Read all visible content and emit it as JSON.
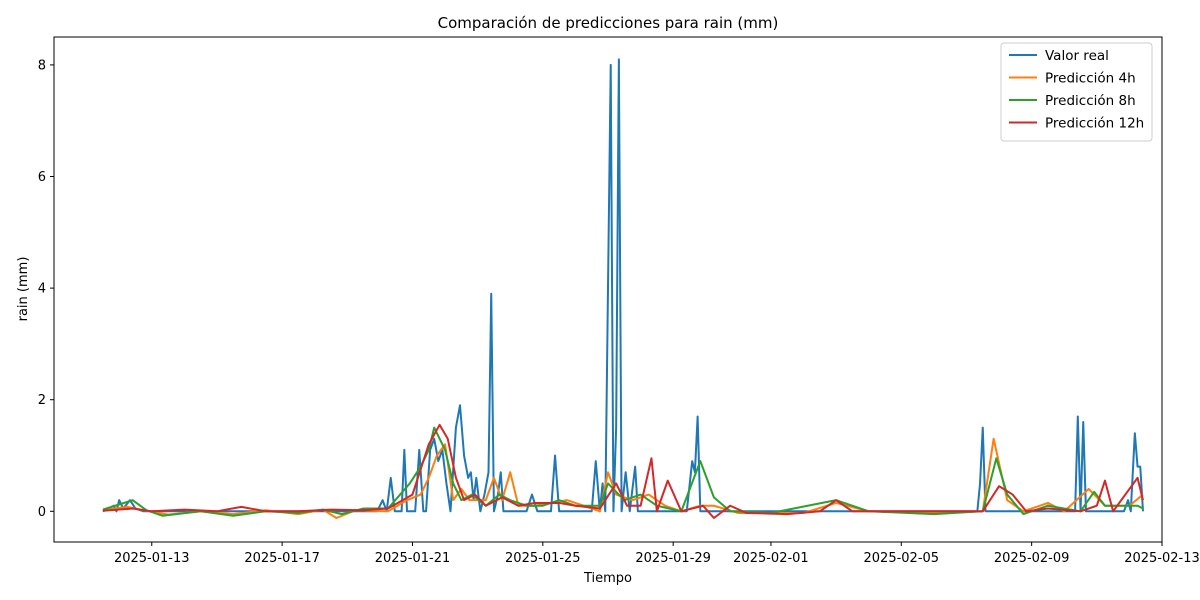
{
  "chart_data": {
    "type": "line",
    "title": "Comparación de predicciones para rain (mm)",
    "xlabel": "Tiempo",
    "ylabel": "rain (mm)",
    "x_axis": {
      "type": "date",
      "range": [
        "2025-01-10T00:00",
        "2025-02-13T00:00"
      ],
      "ticks": [
        "2025-01-13",
        "2025-01-17",
        "2025-01-21",
        "2025-01-25",
        "2025-01-29",
        "2025-02-01",
        "2025-02-05",
        "2025-02-09",
        "2025-02-13"
      ]
    },
    "y_axis": {
      "range": [
        -0.55,
        8.5
      ],
      "ticks": [
        0,
        2,
        4,
        6,
        8
      ]
    },
    "grid": false,
    "legend": {
      "position": "upper-right"
    },
    "series": [
      {
        "name": "Valor real",
        "color": "#1f77b4",
        "points": [
          [
            "2025-01-11T12:00",
            0.0
          ],
          [
            "2025-01-11T20:00",
            0.1
          ],
          [
            "2025-01-11T22:00",
            0.0
          ],
          [
            "2025-01-12T00:00",
            0.2
          ],
          [
            "2025-01-12T03:00",
            0.05
          ],
          [
            "2025-01-12T08:00",
            0.2
          ],
          [
            "2025-01-12T12:00",
            0.05
          ],
          [
            "2025-01-12T18:00",
            0.0
          ],
          [
            "2025-01-17T00:00",
            0.0
          ],
          [
            "2025-01-19T22:00",
            0.0
          ],
          [
            "2025-01-20T02:00",
            0.2
          ],
          [
            "2025-01-20T05:00",
            0.0
          ],
          [
            "2025-01-20T08:00",
            0.6
          ],
          [
            "2025-01-20T11:00",
            0.0
          ],
          [
            "2025-01-20T16:00",
            0.0
          ],
          [
            "2025-01-20T18:00",
            1.1
          ],
          [
            "2025-01-20T20:00",
            0.0
          ],
          [
            "2025-01-21T02:00",
            0.0
          ],
          [
            "2025-01-21T05:00",
            1.1
          ],
          [
            "2025-01-21T08:00",
            0.0
          ],
          [
            "2025-01-21T10:00",
            0.0
          ],
          [
            "2025-01-21T13:00",
            1.1
          ],
          [
            "2025-01-21T16:00",
            1.3
          ],
          [
            "2025-01-21T19:00",
            0.9
          ],
          [
            "2025-01-21T22:00",
            1.1
          ],
          [
            "2025-01-22T01:00",
            0.5
          ],
          [
            "2025-01-22T04:00",
            0.0
          ],
          [
            "2025-01-22T08:00",
            1.5
          ],
          [
            "2025-01-22T11:00",
            1.9
          ],
          [
            "2025-01-22T14:00",
            1.0
          ],
          [
            "2025-01-22T17:00",
            0.6
          ],
          [
            "2025-01-22T19:00",
            0.7
          ],
          [
            "2025-01-22T21:00",
            0.2
          ],
          [
            "2025-01-22T23:00",
            0.6
          ],
          [
            "2025-01-23T02:00",
            0.0
          ],
          [
            "2025-01-23T05:00",
            0.3
          ],
          [
            "2025-01-23T08:00",
            0.7
          ],
          [
            "2025-01-23T10:00",
            3.9
          ],
          [
            "2025-01-23T12:00",
            0.0
          ],
          [
            "2025-01-23T15:00",
            0.3
          ],
          [
            "2025-01-23T17:00",
            0.7
          ],
          [
            "2025-01-23T19:00",
            0.0
          ],
          [
            "2025-01-24T00:00",
            0.0
          ],
          [
            "2025-01-24T12:00",
            0.0
          ],
          [
            "2025-01-24T16:00",
            0.3
          ],
          [
            "2025-01-24T20:00",
            0.0
          ],
          [
            "2025-01-25T06:00",
            0.0
          ],
          [
            "2025-01-25T09:00",
            1.0
          ],
          [
            "2025-01-25T12:00",
            0.0
          ],
          [
            "2025-01-26T00:00",
            0.0
          ],
          [
            "2025-01-26T08:00",
            0.0
          ],
          [
            "2025-01-26T12:00",
            0.0
          ],
          [
            "2025-01-26T15:00",
            0.9
          ],
          [
            "2025-01-26T18:00",
            0.0
          ],
          [
            "2025-01-26T20:00",
            0.5
          ],
          [
            "2025-01-26T22:00",
            0.0
          ],
          [
            "2025-01-27T02:00",
            8.0
          ],
          [
            "2025-01-27T04:00",
            0.0
          ],
          [
            "2025-01-27T06:00",
            1.5
          ],
          [
            "2025-01-27T08:00",
            8.1
          ],
          [
            "2025-01-27T10:00",
            0.0
          ],
          [
            "2025-01-27T13:00",
            0.7
          ],
          [
            "2025-01-27T16:00",
            0.0
          ],
          [
            "2025-01-27T20:00",
            0.8
          ],
          [
            "2025-01-27T22:00",
            0.0
          ],
          [
            "2025-01-28T08:00",
            0.0
          ],
          [
            "2025-01-29T10:00",
            0.0
          ],
          [
            "2025-01-29T14:00",
            0.9
          ],
          [
            "2025-01-29T16:00",
            0.7
          ],
          [
            "2025-01-29T18:00",
            1.7
          ],
          [
            "2025-01-29T20:00",
            0.0
          ],
          [
            "2025-01-30T12:00",
            0.0
          ],
          [
            "2025-02-07T08:00",
            0.0
          ],
          [
            "2025-02-07T10:00",
            0.5
          ],
          [
            "2025-02-07T12:00",
            1.5
          ],
          [
            "2025-02-07T14:00",
            0.0
          ],
          [
            "2025-02-10T08:00",
            0.0
          ],
          [
            "2025-02-10T10:00",
            1.7
          ],
          [
            "2025-02-10T12:00",
            0.0
          ],
          [
            "2025-02-10T14:00",
            1.6
          ],
          [
            "2025-02-10T16:00",
            0.0
          ],
          [
            "2025-02-11T20:00",
            0.0
          ],
          [
            "2025-02-11T23:00",
            0.2
          ],
          [
            "2025-02-12T01:00",
            0.0
          ],
          [
            "2025-02-12T04:00",
            1.4
          ],
          [
            "2025-02-12T06:00",
            0.8
          ],
          [
            "2025-02-12T08:00",
            0.8
          ],
          [
            "2025-02-12T10:00",
            0.0
          ]
        ]
      },
      {
        "name": "Predicción 4h",
        "color": "#ff7f0e",
        "points": [
          [
            "2025-01-11T12:00",
            0.02
          ],
          [
            "2025-01-12T06:00",
            0.08
          ],
          [
            "2025-01-12T18:00",
            0.02
          ],
          [
            "2025-01-13T12:00",
            -0.06
          ],
          [
            "2025-01-14T12:00",
            0.0
          ],
          [
            "2025-01-15T12:00",
            -0.05
          ],
          [
            "2025-01-16T12:00",
            0.02
          ],
          [
            "2025-01-17T12:00",
            -0.05
          ],
          [
            "2025-01-18T06:00",
            0.03
          ],
          [
            "2025-01-18T16:00",
            -0.12
          ],
          [
            "2025-01-19T06:00",
            0.02
          ],
          [
            "2025-01-20T06:00",
            0.0
          ],
          [
            "2025-01-20T20:00",
            0.2
          ],
          [
            "2025-01-21T06:00",
            0.3
          ],
          [
            "2025-01-21T12:00",
            0.6
          ],
          [
            "2025-01-21T18:00",
            1.0
          ],
          [
            "2025-01-22T00:00",
            1.2
          ],
          [
            "2025-01-22T06:00",
            0.2
          ],
          [
            "2025-01-22T12:00",
            0.4
          ],
          [
            "2025-01-22T18:00",
            0.2
          ],
          [
            "2025-01-23T06:00",
            0.2
          ],
          [
            "2025-01-23T12:00",
            0.6
          ],
          [
            "2025-01-23T18:00",
            0.2
          ],
          [
            "2025-01-24T00:00",
            0.7
          ],
          [
            "2025-01-24T06:00",
            0.1
          ],
          [
            "2025-01-24T18:00",
            0.1
          ],
          [
            "2025-01-25T06:00",
            0.15
          ],
          [
            "2025-01-25T18:00",
            0.2
          ],
          [
            "2025-01-26T06:00",
            0.1
          ],
          [
            "2025-01-26T18:00",
            0.0
          ],
          [
            "2025-01-27T00:00",
            0.7
          ],
          [
            "2025-01-27T06:00",
            0.3
          ],
          [
            "2025-01-27T18:00",
            0.2
          ],
          [
            "2025-01-28T06:00",
            0.3
          ],
          [
            "2025-01-28T18:00",
            0.1
          ],
          [
            "2025-01-29T06:00",
            0.0
          ],
          [
            "2025-01-29T20:00",
            0.1
          ],
          [
            "2025-01-30T06:00",
            0.1
          ],
          [
            "2025-01-31T00:00",
            -0.03
          ],
          [
            "2025-02-02T00:00",
            -0.03
          ],
          [
            "2025-02-03T00:00",
            0.15
          ],
          [
            "2025-02-04T00:00",
            0.0
          ],
          [
            "2025-02-06T00:00",
            -0.03
          ],
          [
            "2025-02-07T12:00",
            0.0
          ],
          [
            "2025-02-07T20:00",
            1.3
          ],
          [
            "2025-02-08T06:00",
            0.2
          ],
          [
            "2025-02-08T18:00",
            0.0
          ],
          [
            "2025-02-09T12:00",
            0.15
          ],
          [
            "2025-02-10T00:00",
            0.0
          ],
          [
            "2025-02-10T18:00",
            0.4
          ],
          [
            "2025-02-11T06:00",
            0.1
          ],
          [
            "2025-02-12T00:00",
            0.1
          ],
          [
            "2025-02-12T10:00",
            0.3
          ]
        ]
      },
      {
        "name": "Predicción 8h",
        "color": "#2ca02c",
        "points": [
          [
            "2025-01-11T12:00",
            0.03
          ],
          [
            "2025-01-12T10:00",
            0.2
          ],
          [
            "2025-01-12T20:00",
            0.02
          ],
          [
            "2025-01-13T08:00",
            -0.08
          ],
          [
            "2025-01-14T12:00",
            0.0
          ],
          [
            "2025-01-15T12:00",
            -0.08
          ],
          [
            "2025-01-16T12:00",
            0.0
          ],
          [
            "2025-01-17T12:00",
            -0.03
          ],
          [
            "2025-01-18T06:00",
            0.03
          ],
          [
            "2025-01-18T20:00",
            -0.05
          ],
          [
            "2025-01-19T12:00",
            0.05
          ],
          [
            "2025-01-20T06:00",
            0.05
          ],
          [
            "2025-01-20T22:00",
            0.5
          ],
          [
            "2025-01-21T06:00",
            0.8
          ],
          [
            "2025-01-21T12:00",
            1.1
          ],
          [
            "2025-01-21T16:00",
            1.5
          ],
          [
            "2025-01-22T00:00",
            1.1
          ],
          [
            "2025-01-22T06:00",
            0.5
          ],
          [
            "2025-01-22T12:00",
            0.2
          ],
          [
            "2025-01-22T20:00",
            0.3
          ],
          [
            "2025-01-23T06:00",
            0.1
          ],
          [
            "2025-01-23T16:00",
            0.3
          ],
          [
            "2025-01-24T00:00",
            0.2
          ],
          [
            "2025-01-24T12:00",
            0.1
          ],
          [
            "2025-01-25T00:00",
            0.1
          ],
          [
            "2025-01-25T12:00",
            0.2
          ],
          [
            "2025-01-26T00:00",
            0.1
          ],
          [
            "2025-01-26T18:00",
            0.1
          ],
          [
            "2025-01-27T00:00",
            0.5
          ],
          [
            "2025-01-27T12:00",
            0.2
          ],
          [
            "2025-01-28T00:00",
            0.3
          ],
          [
            "2025-01-28T12:00",
            0.1
          ],
          [
            "2025-01-29T06:00",
            0.0
          ],
          [
            "2025-01-29T20:00",
            0.9
          ],
          [
            "2025-01-30T06:00",
            0.25
          ],
          [
            "2025-01-30T18:00",
            0.0
          ],
          [
            "2025-02-01T00:00",
            -0.03
          ],
          [
            "2025-02-03T00:00",
            0.2
          ],
          [
            "2025-02-04T00:00",
            0.0
          ],
          [
            "2025-02-06T00:00",
            -0.05
          ],
          [
            "2025-02-07T12:00",
            0.0
          ],
          [
            "2025-02-07T22:00",
            0.95
          ],
          [
            "2025-02-08T06:00",
            0.3
          ],
          [
            "2025-02-08T18:00",
            -0.05
          ],
          [
            "2025-02-09T12:00",
            0.1
          ],
          [
            "2025-02-10T12:00",
            0.0
          ],
          [
            "2025-02-10T22:00",
            0.35
          ],
          [
            "2025-02-11T06:00",
            0.1
          ],
          [
            "2025-02-12T06:00",
            0.1
          ],
          [
            "2025-02-12T10:00",
            0.05
          ]
        ]
      },
      {
        "name": "Predicción 12h",
        "color": "#d62728",
        "points": [
          [
            "2025-01-11T12:00",
            0.01
          ],
          [
            "2025-01-12T10:00",
            0.05
          ],
          [
            "2025-01-13T00:00",
            0.0
          ],
          [
            "2025-01-14T00:00",
            0.03
          ],
          [
            "2025-01-15T00:00",
            0.0
          ],
          [
            "2025-01-15T18:00",
            0.08
          ],
          [
            "2025-01-16T12:00",
            0.0
          ],
          [
            "2025-01-17T12:00",
            0.0
          ],
          [
            "2025-01-18T12:00",
            0.03
          ],
          [
            "2025-01-19T12:00",
            0.02
          ],
          [
            "2025-01-20T06:00",
            0.05
          ],
          [
            "2025-01-21T00:00",
            0.3
          ],
          [
            "2025-01-21T12:00",
            1.2
          ],
          [
            "2025-01-21T20:00",
            1.55
          ],
          [
            "2025-01-22T02:00",
            1.3
          ],
          [
            "2025-01-22T08:00",
            0.6
          ],
          [
            "2025-01-22T14:00",
            0.2
          ],
          [
            "2025-01-22T22:00",
            0.3
          ],
          [
            "2025-01-23T06:00",
            0.1
          ],
          [
            "2025-01-23T18:00",
            0.25
          ],
          [
            "2025-01-24T06:00",
            0.1
          ],
          [
            "2025-01-24T18:00",
            0.15
          ],
          [
            "2025-01-25T12:00",
            0.15
          ],
          [
            "2025-01-26T00:00",
            0.1
          ],
          [
            "2025-01-26T18:00",
            0.05
          ],
          [
            "2025-01-27T06:00",
            0.5
          ],
          [
            "2025-01-27T14:00",
            0.1
          ],
          [
            "2025-01-28T00:00",
            0.1
          ],
          [
            "2025-01-28T08:00",
            0.95
          ],
          [
            "2025-01-28T12:00",
            0.0
          ],
          [
            "2025-01-28T20:00",
            0.55
          ],
          [
            "2025-01-29T06:00",
            0.0
          ],
          [
            "2025-01-29T22:00",
            0.1
          ],
          [
            "2025-01-30T06:00",
            -0.12
          ],
          [
            "2025-01-30T18:00",
            0.1
          ],
          [
            "2025-01-31T06:00",
            -0.03
          ],
          [
            "2025-02-01T12:00",
            -0.05
          ],
          [
            "2025-02-02T12:00",
            0.0
          ],
          [
            "2025-02-03T00:00",
            0.2
          ],
          [
            "2025-02-03T12:00",
            0.0
          ],
          [
            "2025-02-05T00:00",
            0.0
          ],
          [
            "2025-02-07T12:00",
            0.0
          ],
          [
            "2025-02-08T00:00",
            0.45
          ],
          [
            "2025-02-08T10:00",
            0.3
          ],
          [
            "2025-02-08T20:00",
            0.0
          ],
          [
            "2025-02-09T12:00",
            0.05
          ],
          [
            "2025-02-10T12:00",
            0.0
          ],
          [
            "2025-02-11T00:00",
            0.1
          ],
          [
            "2025-02-11T06:00",
            0.55
          ],
          [
            "2025-02-11T12:00",
            0.0
          ],
          [
            "2025-02-12T06:00",
            0.6
          ],
          [
            "2025-02-12T10:00",
            0.2
          ]
        ]
      }
    ]
  }
}
